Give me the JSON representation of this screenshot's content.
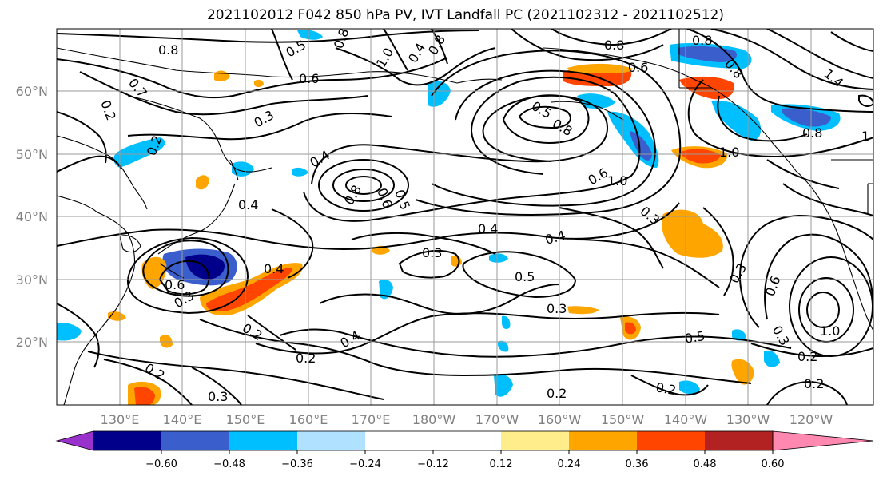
{
  "title": "2021102012 F042 850 hPa PV, IVT Landfall PC (2021102312 - 2021102512)",
  "lat_labels": [
    "60°N",
    "50°N",
    "40°N",
    "30°N",
    "20°N"
  ],
  "lon_labels": [
    "130°E",
    "140°E",
    "150°E",
    "160°E",
    "170°E",
    "180°W",
    "170°W",
    "160°W",
    "150°W",
    "140°W",
    "130°W",
    "120°W"
  ],
  "colorbar": {
    "colors": [
      "#9932cc",
      "#00008b",
      "#3a5fcd",
      "#00bfff",
      "#b0e2ff",
      "#ffffff",
      "#ffec8b",
      "#ffa500",
      "#ff4500",
      "#b22222",
      "#ff88b0"
    ],
    "tick_labels": [
      "−0.60",
      "−0.48",
      "−0.36",
      "−0.24",
      "−0.12",
      "0.12",
      "0.24",
      "0.36",
      "0.48",
      "0.60"
    ]
  },
  "contour_labels": [
    "0.8",
    "0.5",
    "0.8",
    "1.0",
    "0.4",
    "0.8",
    "0.8",
    "0.6",
    "0.8",
    "0.8",
    "1.4",
    "0.7",
    "0.2",
    "0.6",
    "0.3",
    "0.2",
    "0.5",
    "0.8",
    "1.0",
    "0.6",
    "1.0",
    "0.8",
    "1",
    "0.4",
    "0.8",
    "0.6",
    "0.5",
    "0.4",
    "0.4",
    "0.3",
    "0.4",
    "0.5",
    "0.6",
    "0.3",
    "0.4",
    "0.3",
    "0.2",
    "0.5",
    "0.2",
    "0.4",
    "0.3",
    "0.6",
    "0.3",
    "1.0",
    "0.2",
    "0.2",
    "0.2",
    "0.2",
    "0.3",
    "0.2",
    "0.3"
  ]
}
